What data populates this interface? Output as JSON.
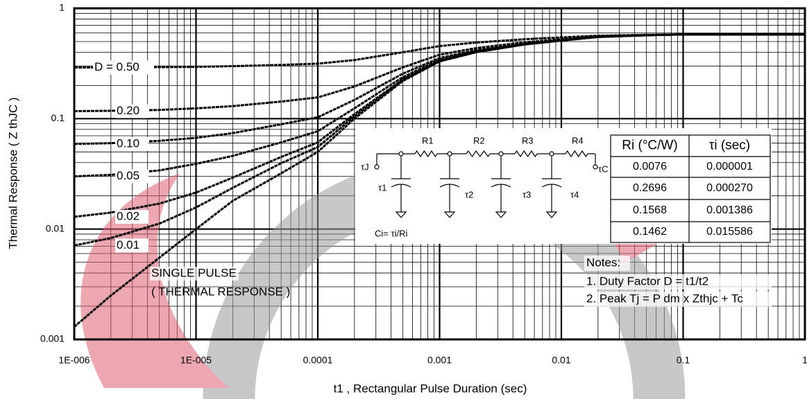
{
  "chart_data": {
    "type": "line",
    "y_label": "Thermal Response ( Z thJC )",
    "x_label": "t1 , Rectangular Pulse Duration (sec)",
    "x_scale": "log",
    "y_scale": "log",
    "xlim": [
      1e-06,
      1
    ],
    "ylim": [
      0.001,
      1
    ],
    "xticks": [
      {
        "value": 1e-06,
        "label": "1E-006"
      },
      {
        "value": 1e-05,
        "label": "1E-005"
      },
      0.0001,
      0.001,
      0.01,
      0.1,
      1
    ],
    "yticks": [
      0.001,
      0.01,
      0.1,
      1
    ],
    "grid": true,
    "minor_grid": true,
    "x": [
      1e-06,
      2e-06,
      5e-06,
      1e-05,
      2e-05,
      5e-05,
      0.0001,
      0.0002,
      0.0005,
      0.001,
      0.002,
      0.005,
      0.01,
      0.02,
      0.05,
      0.1,
      0.2,
      0.5,
      1
    ],
    "series": [
      {
        "name": "D = 0.50",
        "color": "#000000",
        "values": [
          0.291,
          0.291,
          0.293,
          0.295,
          0.299,
          0.307,
          0.315,
          0.34,
          0.4,
          0.455,
          0.49,
          0.525,
          0.545,
          0.565,
          0.575,
          0.58,
          0.58,
          0.58,
          0.58
        ]
      },
      {
        "name": "0.20",
        "color": "#000000",
        "values": [
          0.117,
          0.118,
          0.12,
          0.124,
          0.13,
          0.143,
          0.156,
          0.196,
          0.292,
          0.38,
          0.436,
          0.492,
          0.524,
          0.556,
          0.572,
          0.58,
          0.58,
          0.58,
          0.58
        ]
      },
      {
        "name": "0.10",
        "color": "#000000",
        "values": [
          0.059,
          0.06,
          0.063,
          0.067,
          0.074,
          0.089,
          0.103,
          0.148,
          0.256,
          0.355,
          0.418,
          0.481,
          0.517,
          0.553,
          0.571,
          0.58,
          0.58,
          0.58,
          0.58
        ]
      },
      {
        "name": "0.05",
        "color": "#000000",
        "values": [
          0.03,
          0.031,
          0.034,
          0.039,
          0.046,
          0.061,
          0.077,
          0.124,
          0.238,
          0.343,
          0.409,
          0.476,
          0.514,
          0.552,
          0.571,
          0.58,
          0.58,
          0.58,
          0.58
        ]
      },
      {
        "name": "0.02",
        "color": "#000000",
        "values": [
          0.0129,
          0.0141,
          0.017,
          0.0214,
          0.0292,
          0.045,
          0.061,
          0.11,
          0.227,
          0.335,
          0.404,
          0.472,
          0.511,
          0.551,
          0.57,
          0.58,
          0.58,
          0.58,
          0.58
        ]
      },
      {
        "name": "0.01",
        "color": "#000000",
        "values": [
          0.0071,
          0.0083,
          0.0112,
          0.0157,
          0.0236,
          0.0395,
          0.0553,
          0.105,
          0.224,
          0.333,
          0.402,
          0.471,
          0.511,
          0.55,
          0.57,
          0.58,
          0.58,
          0.58,
          0.58
        ]
      },
      {
        "name": "SINGLE PULSE",
        "color": "#000000",
        "values": [
          0.0013,
          0.0025,
          0.0055,
          0.01,
          0.018,
          0.032,
          0.05,
          0.1,
          0.22,
          0.33,
          0.4,
          0.47,
          0.51,
          0.55,
          0.57,
          0.58,
          0.58,
          0.58,
          0.58
        ]
      }
    ],
    "annotation": "( THERMAL RESPONSE )",
    "inset": {
      "circuit_labels": {
        "tau_j": "τJ",
        "tau_c": "τC",
        "r": [
          "R1",
          "R2",
          "R3",
          "R4"
        ],
        "tau": [
          "τ1",
          "τ2",
          "τ3",
          "τ4"
        ],
        "ci": "Ci= τi/Ri"
      },
      "table": {
        "header": [
          "Ri (°C/W)",
          "τi (sec)"
        ],
        "rows": [
          [
            "0.0076",
            "0.000001"
          ],
          [
            "0.2696",
            "0.000270"
          ],
          [
            "0.1568",
            "0.001386"
          ],
          [
            "0.1462",
            "0.015586"
          ]
        ]
      }
    },
    "notes": [
      "Notes:",
      "1. Duty Factor D = t1/t2",
      "2. Peak Tj = P dm x Zthjc + Tc"
    ]
  }
}
